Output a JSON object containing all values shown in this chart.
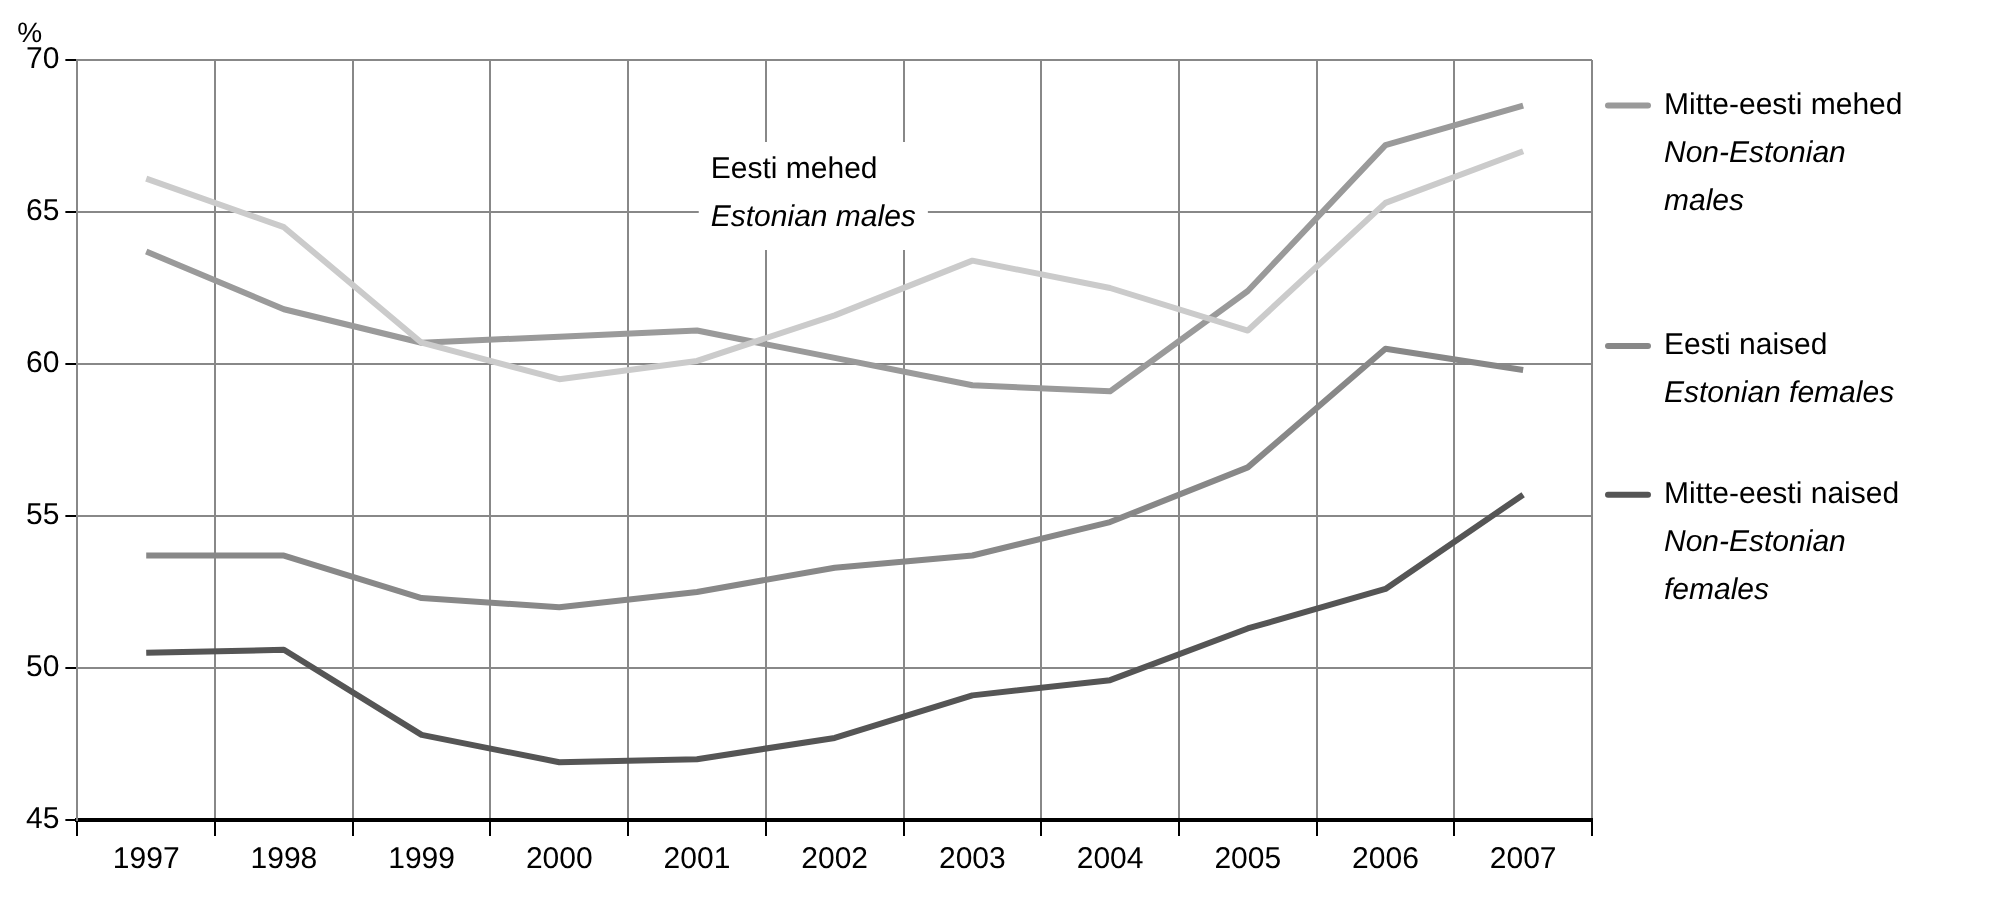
{
  "chart_data": {
    "type": "line",
    "ylabel": "%",
    "categories": [
      "1997",
      "1998",
      "1999",
      "2000",
      "2001",
      "2002",
      "2003",
      "2004",
      "2005",
      "2006",
      "2007"
    ],
    "series": [
      {
        "name": "Eesti mehed\nEstonian males",
        "color": "#cbcbcb",
        "values": [
          66.1,
          64.5,
          60.7,
          59.5,
          60.1,
          61.6,
          63.4,
          62.5,
          61.1,
          65.3,
          67.0
        ]
      },
      {
        "name": "Mitte-eesti mehed\nNon-Estonian males",
        "color": "#9a9a9a",
        "values": [
          63.7,
          61.8,
          60.7,
          60.9,
          61.1,
          60.2,
          59.3,
          59.1,
          62.4,
          67.2,
          68.5
        ]
      },
      {
        "name": "Eesti naised\nEstonian females",
        "color": "#888888",
        "values": [
          53.7,
          53.7,
          52.3,
          52.0,
          52.5,
          53.3,
          53.7,
          54.8,
          56.6,
          60.5,
          59.8
        ]
      },
      {
        "name": "Mitte-eesti naised\nNon-Estonian females",
        "color": "#555555",
        "values": [
          50.5,
          50.6,
          47.8,
          46.9,
          47.0,
          47.7,
          49.1,
          49.6,
          51.3,
          52.6,
          55.7
        ]
      }
    ],
    "ylim": [
      45,
      70
    ],
    "yticks": [
      45,
      50,
      55,
      60,
      65,
      70
    ],
    "grid": true,
    "legend": "right",
    "marker": "none",
    "line_style": "solid"
  }
}
